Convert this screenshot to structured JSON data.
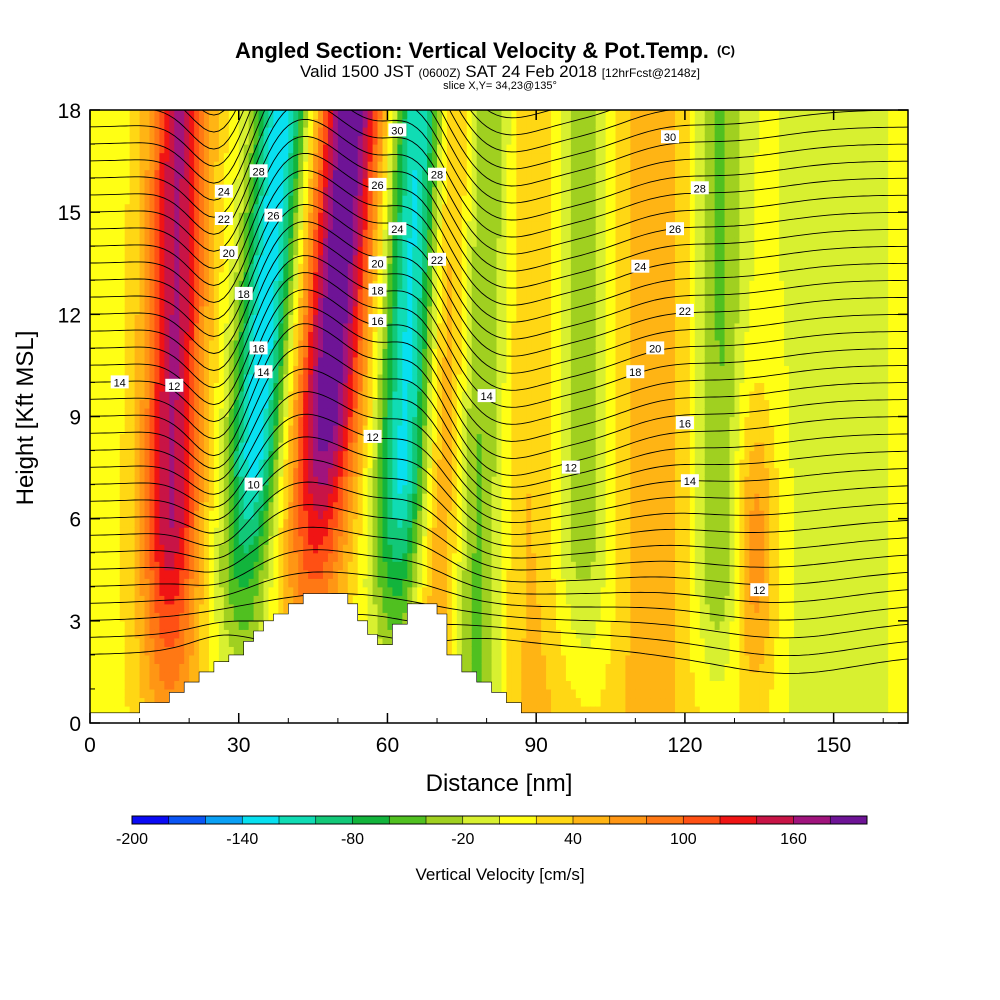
{
  "chart_data": {
    "type": "heatmap",
    "title": "Angled Section: Vertical Velocity & Pot.Temp.",
    "title_mark": "(C)",
    "subtitle": {
      "part1": "Valid 1500 JST",
      "part2": "(0600Z)",
      "part3": "SAT 24 Feb 2018",
      "part4": "[12hrFcst@2148z]"
    },
    "slice_note": "slice X,Y= 34,23@135°",
    "xlabel": "Distance [nm]",
    "ylabel": "Height [Kft MSL]",
    "xlim": [
      0,
      165
    ],
    "ylim": [
      0,
      18
    ],
    "x_ticks": [
      "0",
      "30",
      "60",
      "90",
      "120",
      "150"
    ],
    "y_ticks": [
      "0",
      "3",
      "6",
      "9",
      "12",
      "15",
      "18"
    ],
    "colorbar": {
      "label": "Vertical Velocity [cm/s]",
      "levels": [
        -200,
        -180,
        -160,
        -140,
        -120,
        -100,
        -80,
        -60,
        -40,
        -20,
        0,
        20,
        40,
        60,
        80,
        100,
        120,
        140,
        160,
        180,
        200
      ],
      "colors": [
        "#0a0af5",
        "#0a55f5",
        "#0aa0f5",
        "#08e0f0",
        "#10dcb4",
        "#12c878",
        "#12b43c",
        "#50c020",
        "#a0d020",
        "#d8f030",
        "#ffff14",
        "#ffd714",
        "#ffb414",
        "#ff9614",
        "#ff7814",
        "#ff5014",
        "#f01414",
        "#c81446",
        "#a0147d",
        "#6e1496"
      ],
      "tick_labels": [
        "-200",
        "-140",
        "-80",
        "-20",
        "40",
        "100",
        "160"
      ]
    },
    "terrain": {
      "x": [
        0,
        10,
        10,
        16,
        16,
        19,
        19,
        22,
        22,
        25,
        25,
        28,
        28,
        31,
        31,
        33,
        33,
        35,
        35,
        37,
        37,
        39,
        39,
        40,
        40,
        43,
        43,
        46,
        46,
        52,
        52,
        54,
        54,
        56,
        56,
        58,
        58,
        61,
        61,
        64,
        64,
        70,
        70,
        72,
        72,
        75,
        75,
        78,
        78,
        81,
        81,
        84,
        84,
        87,
        87,
        90,
        90,
        165
      ],
      "height": [
        0.3,
        0.3,
        0.6,
        0.6,
        0.9,
        0.9,
        1.2,
        1.2,
        1.5,
        1.5,
        1.8,
        1.8,
        2.0,
        2.0,
        2.4,
        2.4,
        2.7,
        2.7,
        3.0,
        3.0,
        3.2,
        3.2,
        3.2,
        3.2,
        3.5,
        3.5,
        3.8,
        3.8,
        3.8,
        3.8,
        3.5,
        3.5,
        3.0,
        3.0,
        2.6,
        2.6,
        2.3,
        2.3,
        2.9,
        2.9,
        3.5,
        3.5,
        3.2,
        3.2,
        2.0,
        2.0,
        1.5,
        1.5,
        1.2,
        1.2,
        0.9,
        0.9,
        0.6,
        0.6,
        0.3,
        0.3,
        0.3,
        0.3
      ]
    },
    "contour_labels": [
      {
        "text": "30",
        "x": 62,
        "y": 17.4
      },
      {
        "text": "30",
        "x": 117,
        "y": 17.2
      },
      {
        "text": "28",
        "x": 34,
        "y": 16.2
      },
      {
        "text": "28",
        "x": 70,
        "y": 16.1
      },
      {
        "text": "28",
        "x": 123,
        "y": 15.7
      },
      {
        "text": "26",
        "x": 37,
        "y": 14.9
      },
      {
        "text": "26",
        "x": 58,
        "y": 15.8
      },
      {
        "text": "26",
        "x": 118,
        "y": 14.5
      },
      {
        "text": "24",
        "x": 27,
        "y": 15.6
      },
      {
        "text": "24",
        "x": 62,
        "y": 14.5
      },
      {
        "text": "24",
        "x": 111,
        "y": 13.4
      },
      {
        "text": "22",
        "x": 27,
        "y": 14.8
      },
      {
        "text": "22",
        "x": 70,
        "y": 13.6
      },
      {
        "text": "22",
        "x": 120,
        "y": 12.1
      },
      {
        "text": "20",
        "x": 28,
        "y": 13.8
      },
      {
        "text": "20",
        "x": 58,
        "y": 13.5
      },
      {
        "text": "20",
        "x": 114,
        "y": 11.0
      },
      {
        "text": "18",
        "x": 31,
        "y": 12.6
      },
      {
        "text": "18",
        "x": 58,
        "y": 12.7
      },
      {
        "text": "18",
        "x": 110,
        "y": 10.3
      },
      {
        "text": "16",
        "x": 34,
        "y": 11.0
      },
      {
        "text": "16",
        "x": 58,
        "y": 11.8
      },
      {
        "text": "16",
        "x": 120,
        "y": 8.8
      },
      {
        "text": "14",
        "x": 6,
        "y": 10.0
      },
      {
        "text": "14",
        "x": 35,
        "y": 10.3
      },
      {
        "text": "14",
        "x": 80,
        "y": 9.6
      },
      {
        "text": "14",
        "x": 121,
        "y": 7.1
      },
      {
        "text": "12",
        "x": 17,
        "y": 9.9
      },
      {
        "text": "12",
        "x": 57,
        "y": 8.4
      },
      {
        "text": "12",
        "x": 97,
        "y": 7.5
      },
      {
        "text": "12",
        "x": 135,
        "y": 3.9
      },
      {
        "text": "10",
        "x": 33,
        "y": 7.0
      }
    ]
  }
}
